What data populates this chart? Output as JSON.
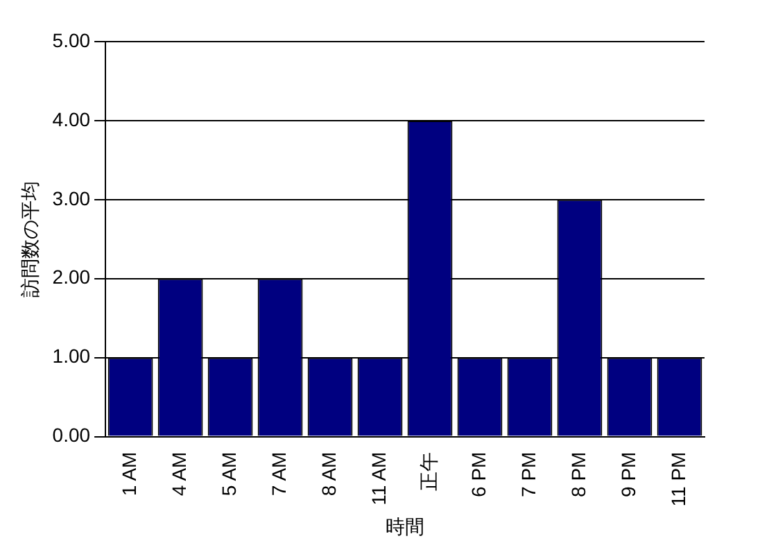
{
  "chart_data": {
    "type": "bar",
    "xlabel": "時間",
    "ylabel": "訪問数の平均",
    "categories": [
      "1 AM",
      "4 AM",
      "5 AM",
      "7 AM",
      "8 AM",
      "11 AM",
      "正午",
      "6 PM",
      "7 PM",
      "8 PM",
      "9 PM",
      "11 PM"
    ],
    "values": [
      1,
      2,
      1,
      2,
      1,
      1,
      4,
      1,
      1,
      3,
      1,
      1
    ],
    "color": "#000080",
    "ylim": [
      0,
      5
    ],
    "yticks": [
      {
        "value": 0,
        "label": "0.00"
      },
      {
        "value": 1,
        "label": "1.00"
      },
      {
        "value": 2,
        "label": "2.00"
      },
      {
        "value": 3,
        "label": "3.00"
      },
      {
        "value": 4,
        "label": "4.00"
      },
      {
        "value": 5,
        "label": "5.00"
      }
    ],
    "grid": "y",
    "legend": false
  }
}
